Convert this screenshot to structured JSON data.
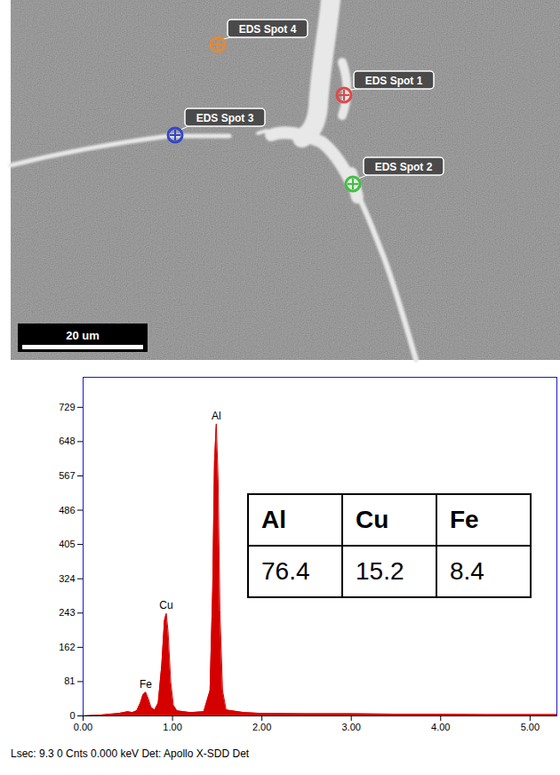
{
  "micrograph": {
    "scale_bar": "20 um",
    "labels": [
      {
        "text": "EDS Spot 1",
        "color": "#e04848"
      },
      {
        "text": "EDS Spot 2",
        "color": "#40c040"
      },
      {
        "text": "EDS Spot 3",
        "color": "#3344cc"
      },
      {
        "text": "EDS Spot 4",
        "color": "#e08a3a"
      }
    ]
  },
  "chart_data": {
    "type": "area",
    "color": "#d40000",
    "x": [
      0.0,
      0.2,
      0.3,
      0.4,
      0.5,
      0.55,
      0.6,
      0.64,
      0.67,
      0.7,
      0.73,
      0.76,
      0.8,
      0.84,
      0.88,
      0.91,
      0.93,
      0.95,
      0.98,
      1.01,
      1.05,
      1.2,
      1.35,
      1.42,
      1.45,
      1.47,
      1.49,
      1.51,
      1.53,
      1.56,
      1.6,
      1.8,
      2.0,
      2.5,
      3.0,
      3.5,
      4.0,
      4.5,
      5.0,
      5.3
    ],
    "values": [
      0,
      2,
      4,
      6,
      10,
      8,
      12,
      30,
      50,
      56,
      40,
      20,
      14,
      30,
      120,
      225,
      242,
      200,
      80,
      25,
      12,
      8,
      10,
      60,
      300,
      600,
      690,
      560,
      250,
      60,
      14,
      8,
      6,
      5,
      5,
      4,
      4,
      3,
      3,
      3
    ],
    "xlim": [
      0,
      5.3
    ],
    "ylim": [
      0,
      800
    ],
    "xticks": [
      {
        "value": 0,
        "label": "0.00"
      },
      {
        "value": 1,
        "label": "1.00"
      },
      {
        "value": 2,
        "label": "2.00"
      },
      {
        "value": 3,
        "label": "3.00"
      },
      {
        "value": 4,
        "label": "4.00"
      },
      {
        "value": 5,
        "label": "5.00"
      }
    ],
    "yticks": [
      0,
      81,
      162,
      243,
      324,
      405,
      486,
      567,
      648,
      729
    ],
    "annotations": [
      {
        "text": "Fe",
        "x": 0.7,
        "y": 56
      },
      {
        "text": "Cu",
        "x": 0.93,
        "y": 242
      },
      {
        "text": "Al",
        "x": 1.49,
        "y": 690
      }
    ],
    "table": {
      "columns": [
        "Al",
        "Cu",
        "Fe"
      ],
      "values": [
        76.4,
        15.2,
        8.4
      ]
    }
  },
  "caption": "Lsec: 9.3 0 Cnts 0.000 keV Det: Apollo X-SDD Det"
}
